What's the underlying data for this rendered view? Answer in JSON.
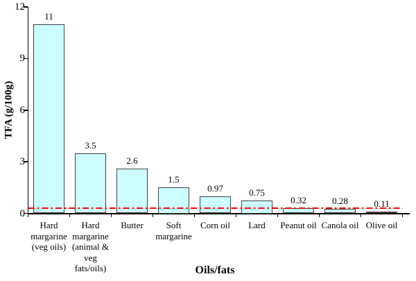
{
  "chart_data": {
    "type": "bar",
    "title": "",
    "xlabel": "Oils/fats",
    "ylabel": "TFA (g/100g)",
    "ylim": [
      0,
      12
    ],
    "yticks": [
      0,
      3,
      6,
      9,
      12
    ],
    "grid": false,
    "legend": "none",
    "categories": [
      "Hard margarine (veg oils)",
      "Hard margarine (animal & veg fats/oils)",
      "Butter",
      "Soft margarine",
      "Corn oil",
      "Lard",
      "Peanut oil",
      "Canola oil",
      "Olive oil"
    ],
    "category_lines": [
      [
        "Hard",
        "margarine",
        "(veg oils)"
      ],
      [
        "Hard",
        "margarine",
        "(animal &",
        "veg",
        "fats/oils)"
      ],
      [
        "Butter"
      ],
      [
        "Soft",
        "margarine"
      ],
      [
        "Corn oil"
      ],
      [
        "Lard"
      ],
      [
        "Peanut oil"
      ],
      [
        "Canola oil"
      ],
      [
        "Olive oil"
      ]
    ],
    "values": [
      11,
      3.5,
      2.6,
      1.5,
      0.97,
      0.75,
      0.32,
      0.28,
      0.11
    ],
    "value_labels": [
      "11",
      "3.5",
      "2.6",
      "1.5",
      "0.97",
      "0.75",
      "0.32",
      "0.28",
      "0.11"
    ],
    "reference_line": {
      "value": 0.3,
      "color": "#ff0000",
      "style": "dash-dot"
    },
    "colors": {
      "bar_fill": "#ccfdff",
      "bar_border": "#404040",
      "axis": "#000000",
      "text": "#000000",
      "reference": "#ff0000"
    }
  }
}
